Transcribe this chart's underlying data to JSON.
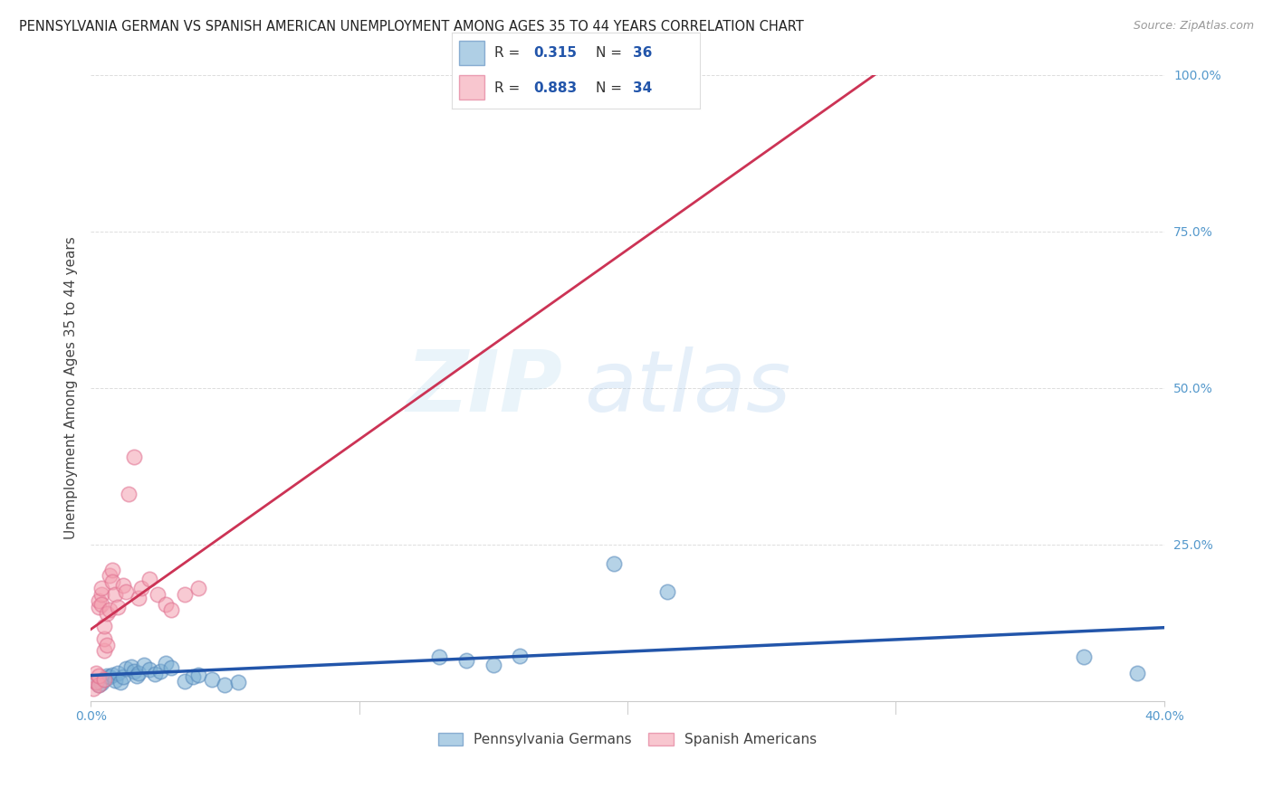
{
  "title": "PENNSYLVANIA GERMAN VS SPANISH AMERICAN UNEMPLOYMENT AMONG AGES 35 TO 44 YEARS CORRELATION CHART",
  "source": "Source: ZipAtlas.com",
  "ylabel": "Unemployment Among Ages 35 to 44 years",
  "xlim": [
    0.0,
    0.4
  ],
  "ylim": [
    0.0,
    1.0
  ],
  "xtick_positions": [
    0.0,
    0.4
  ],
  "xtick_labels": [
    "0.0%",
    "40.0%"
  ],
  "ytick_positions": [
    0.0,
    0.25,
    0.5,
    0.75,
    1.0
  ],
  "ytick_labels": [
    "",
    "25.0%",
    "50.0%",
    "75.0%",
    "100.0%"
  ],
  "blue_R": 0.315,
  "blue_N": 36,
  "pink_R": 0.883,
  "pink_N": 34,
  "blue_color": "#7BAFD4",
  "pink_color": "#F4A0B0",
  "blue_edge_color": "#5588BB",
  "pink_edge_color": "#E07090",
  "blue_line_color": "#2255AA",
  "pink_line_color": "#CC3355",
  "background_color": "#FFFFFF",
  "watermark_zip": "ZIP",
  "watermark_atlas": "atlas",
  "legend_blue_label": "Pennsylvania Germans",
  "legend_pink_label": "Spanish Americans",
  "blue_points": [
    [
      0.002,
      0.03
    ],
    [
      0.003,
      0.025
    ],
    [
      0.004,
      0.028
    ],
    [
      0.005,
      0.035
    ],
    [
      0.006,
      0.04
    ],
    [
      0.007,
      0.038
    ],
    [
      0.008,
      0.042
    ],
    [
      0.009,
      0.033
    ],
    [
      0.01,
      0.045
    ],
    [
      0.011,
      0.03
    ],
    [
      0.012,
      0.038
    ],
    [
      0.013,
      0.052
    ],
    [
      0.015,
      0.055
    ],
    [
      0.016,
      0.048
    ],
    [
      0.017,
      0.04
    ],
    [
      0.018,
      0.045
    ],
    [
      0.02,
      0.058
    ],
    [
      0.022,
      0.05
    ],
    [
      0.024,
      0.043
    ],
    [
      0.026,
      0.048
    ],
    [
      0.028,
      0.06
    ],
    [
      0.03,
      0.053
    ],
    [
      0.035,
      0.032
    ],
    [
      0.038,
      0.038
    ],
    [
      0.04,
      0.042
    ],
    [
      0.045,
      0.035
    ],
    [
      0.05,
      0.025
    ],
    [
      0.055,
      0.03
    ],
    [
      0.13,
      0.07
    ],
    [
      0.14,
      0.065
    ],
    [
      0.15,
      0.058
    ],
    [
      0.16,
      0.072
    ],
    [
      0.195,
      0.22
    ],
    [
      0.215,
      0.175
    ],
    [
      0.37,
      0.07
    ],
    [
      0.39,
      0.045
    ]
  ],
  "pink_points": [
    [
      0.001,
      0.02
    ],
    [
      0.002,
      0.03
    ],
    [
      0.002,
      0.045
    ],
    [
      0.003,
      0.025
    ],
    [
      0.003,
      0.04
    ],
    [
      0.003,
      0.15
    ],
    [
      0.003,
      0.16
    ],
    [
      0.004,
      0.17
    ],
    [
      0.004,
      0.18
    ],
    [
      0.004,
      0.155
    ],
    [
      0.005,
      0.035
    ],
    [
      0.005,
      0.08
    ],
    [
      0.005,
      0.1
    ],
    [
      0.005,
      0.12
    ],
    [
      0.006,
      0.09
    ],
    [
      0.006,
      0.14
    ],
    [
      0.007,
      0.145
    ],
    [
      0.007,
      0.2
    ],
    [
      0.008,
      0.21
    ],
    [
      0.008,
      0.19
    ],
    [
      0.009,
      0.17
    ],
    [
      0.01,
      0.15
    ],
    [
      0.012,
      0.185
    ],
    [
      0.013,
      0.175
    ],
    [
      0.014,
      0.33
    ],
    [
      0.016,
      0.39
    ],
    [
      0.018,
      0.165
    ],
    [
      0.019,
      0.18
    ],
    [
      0.022,
      0.195
    ],
    [
      0.025,
      0.17
    ],
    [
      0.028,
      0.155
    ],
    [
      0.03,
      0.145
    ],
    [
      0.035,
      0.17
    ],
    [
      0.04,
      0.18
    ]
  ],
  "grid_color": "#DDDDDD",
  "tick_color": "#5599CC",
  "title_fontsize": 10.5,
  "source_fontsize": 9,
  "axis_fontsize": 10,
  "ylabel_fontsize": 11
}
